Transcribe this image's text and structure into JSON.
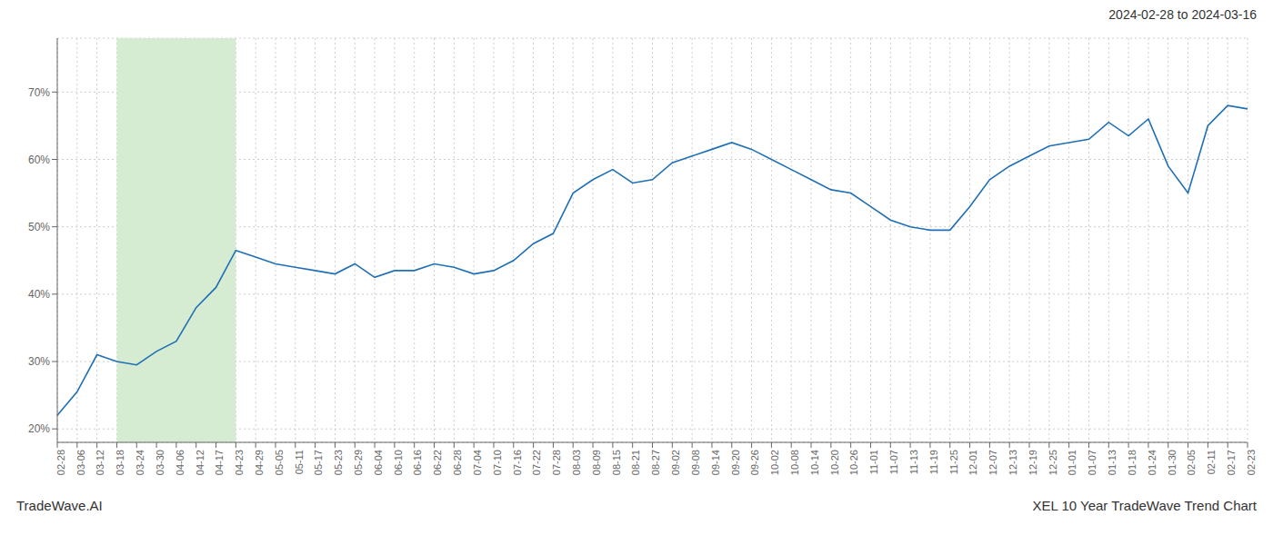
{
  "chart_data": {
    "type": "line",
    "title": "2024-02-28 to 2024-03-16",
    "annotations": [
      "TradeWave.AI",
      "XEL 10 Year TradeWave Trend Chart"
    ],
    "color": "#1f6fb5",
    "grid": true,
    "highlight": {
      "from": "03-18",
      "to": "04-23",
      "color": "#d6ecd2"
    },
    "ylim": [
      18,
      78
    ],
    "yticks": [
      {
        "value": 20,
        "label": "20%"
      },
      {
        "value": 30,
        "label": "30%"
      },
      {
        "value": 40,
        "label": "40%"
      },
      {
        "value": 50,
        "label": "50%"
      },
      {
        "value": 60,
        "label": "60%"
      },
      {
        "value": 70,
        "label": "70%"
      }
    ],
    "categories": [
      "02-28",
      "03-06",
      "03-12",
      "03-18",
      "03-24",
      "03-30",
      "04-06",
      "04-12",
      "04-17",
      "04-23",
      "04-29",
      "05-05",
      "05-11",
      "05-17",
      "05-23",
      "05-29",
      "06-04",
      "06-10",
      "06-16",
      "06-22",
      "06-28",
      "07-04",
      "07-10",
      "07-16",
      "07-22",
      "07-28",
      "08-03",
      "08-09",
      "08-15",
      "08-21",
      "08-27",
      "09-02",
      "09-08",
      "09-14",
      "09-20",
      "09-26",
      "10-02",
      "10-08",
      "10-14",
      "10-20",
      "10-26",
      "11-01",
      "11-07",
      "11-13",
      "11-19",
      "11-25",
      "12-01",
      "12-07",
      "12-13",
      "12-19",
      "12-25",
      "01-01",
      "01-07",
      "01-13",
      "01-18",
      "01-24",
      "01-30",
      "02-05",
      "02-11",
      "02-17",
      "02-23"
    ],
    "values": [
      22.0,
      25.5,
      31.0,
      30.0,
      29.5,
      31.5,
      33.0,
      38.0,
      41.0,
      46.5,
      45.5,
      44.5,
      44.0,
      43.5,
      43.0,
      44.5,
      42.5,
      43.5,
      43.5,
      44.5,
      44.0,
      43.0,
      43.5,
      45.0,
      47.5,
      49.0,
      55.0,
      57.0,
      58.5,
      56.5,
      57.0,
      59.5,
      60.5,
      61.5,
      62.5,
      61.5,
      60.0,
      58.5,
      57.0,
      55.5,
      55.0,
      53.0,
      51.0,
      50.0,
      49.5,
      49.5,
      53.0,
      57.0,
      59.0,
      60.5,
      62.0,
      62.5,
      63.0,
      65.5,
      63.5,
      66.0,
      59.0,
      55.0,
      65.0,
      68.0,
      67.5
    ]
  }
}
